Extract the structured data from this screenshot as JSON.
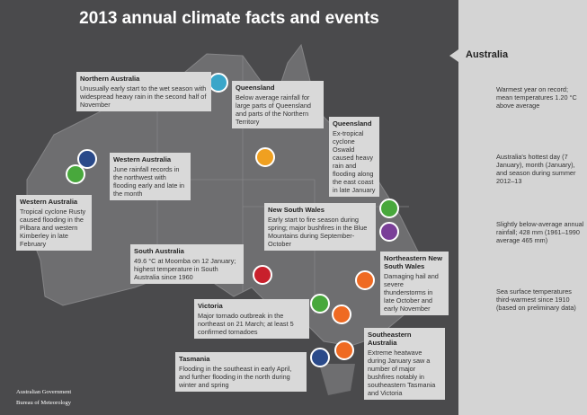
{
  "header": {
    "title": "2013 annual climate facts and events"
  },
  "panel": {
    "title": "Australia",
    "items": [
      "Warmest year on record; mean temperatures 1.20 °C above average",
      "Australia's hottest day (7 January), month (January), and season during summer 2012–13",
      "Slightly below-average annual rainfall; 428 mm (1961–1990 average 465 mm)",
      "Sea surface temperatures third-warmest since 1910 (based on preliminary data)"
    ]
  },
  "callouts": [
    {
      "title": "Northern Australia",
      "text": "Unusually early start to the wet season with widespread heavy rain in the second half of November"
    },
    {
      "title": "Queensland",
      "text": "Below average rainfall for large parts of Queensland and parts of the Northern Territory"
    },
    {
      "title": "Queensland",
      "text": "Ex-tropical cyclone Oswald caused heavy rain and flooding along the east coast in late January"
    },
    {
      "title": "Western Australia",
      "text": "June rainfall records in the northwest with flooding early and late in the month"
    },
    {
      "title": "Western Australia",
      "text": "Tropical cyclone Rusty caused flooding in the Pilbara and western Kimberley in late February"
    },
    {
      "title": "New South Wales",
      "text": "Early start to fire season during spring; major bushfires in the Blue Mountains during September-October"
    },
    {
      "title": "South Australia",
      "text": "49.6 °C at Moomba on 12 January; highest temperature in South Australia since 1960"
    },
    {
      "title": "Northeastern New South Wales",
      "text": "Damaging hail and severe thunderstorms in late October and early November"
    },
    {
      "title": "Victoria",
      "text": "Major tornado outbreak in the northeast on 21 March; at least 5 confirmed tornadoes"
    },
    {
      "title": "Southeastern Australia",
      "text": "Extreme heatwave during January saw a number of major bushfires notably in southeastern Tasmania and Victoria"
    },
    {
      "title": "Tasmania",
      "text": "Flooding in the southeast in early April, and further flooding in the north during winter and spring"
    }
  ],
  "logo": {
    "line1": "Australian Government",
    "line2": "Bureau of Meteorology"
  }
}
